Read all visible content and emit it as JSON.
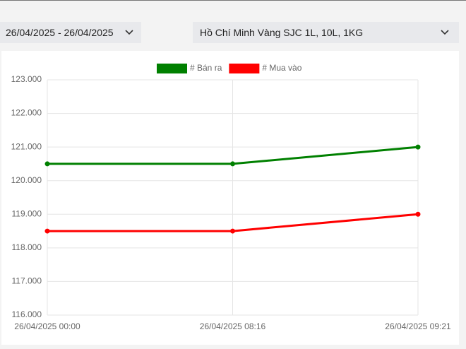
{
  "date_range": "26/04/2025 - 26/04/2025",
  "location": "Hồ Chí Minh Vàng SJC 1L, 10L, 1KG",
  "chart_data": {
    "type": "line",
    "x": [
      "26/04/2025 00:00",
      "26/04/2025 08:16",
      "26/04/2025 09:21"
    ],
    "series": [
      {
        "name": "# Bán ra",
        "color": "#008000",
        "values": [
          120500,
          120500,
          121000
        ]
      },
      {
        "name": "# Mua vào",
        "color": "#ff0000",
        "values": [
          118500,
          118500,
          119000
        ]
      }
    ],
    "ylim": [
      116000,
      123000
    ],
    "yticks": [
      {
        "value": 116000,
        "label": "116.000"
      },
      {
        "value": 117000,
        "label": "117.000"
      },
      {
        "value": 118000,
        "label": "118.000"
      },
      {
        "value": 119000,
        "label": "119.000"
      },
      {
        "value": 120000,
        "label": "120.000"
      },
      {
        "value": 121000,
        "label": "121.000"
      },
      {
        "value": 122000,
        "label": "122.000"
      },
      {
        "value": 123000,
        "label": "123.000"
      }
    ],
    "grid": true
  }
}
